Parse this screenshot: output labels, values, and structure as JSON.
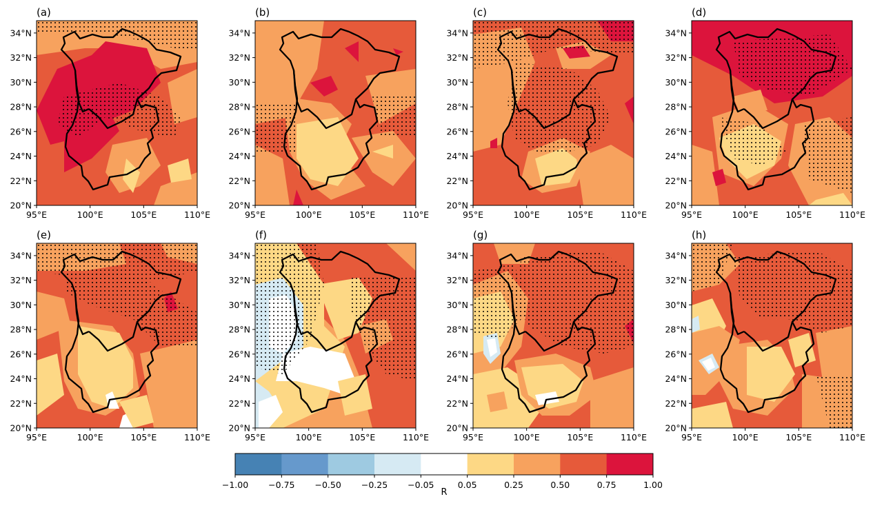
{
  "panels": [
    {
      "label": "(a)"
    },
    {
      "label": "(b)"
    },
    {
      "label": "(c)"
    },
    {
      "label": "(d)"
    },
    {
      "label": "(e)"
    },
    {
      "label": "(f)"
    },
    {
      "label": "(g)"
    },
    {
      "label": "(h)"
    }
  ],
  "axes": {
    "x_ticks": [
      "95°E",
      "100°E",
      "105°E",
      "110°E"
    ],
    "y_ticks": [
      "20°N",
      "22°N",
      "24°N",
      "26°N",
      "28°N",
      "30°N",
      "32°N",
      "34°N"
    ],
    "lon_range": [
      95,
      110
    ],
    "lat_range": [
      20,
      35
    ]
  },
  "colorbar": {
    "label": "R",
    "tick_labels": [
      "−1.00",
      "−0.75",
      "−0.50",
      "−0.25",
      "−0.05",
      "0.05",
      "0.25",
      "0.50",
      "0.75",
      "1.00"
    ],
    "colors": [
      "#4682b4",
      "#6699cc",
      "#9ecae1",
      "#d6eaf3",
      "#ffffff",
      "#fdd885",
      "#f7a25e",
      "#e65a3a",
      "#dc143c"
    ]
  },
  "colors": {
    "background": "#f7a25e",
    "patch_light": "#fdd885",
    "patch_orange": "#f7a25e",
    "patch_red": "#e65a3a",
    "patch_crimson": "#dc143c",
    "patch_lightblue": "#d6eaf3",
    "patch_white": "#ffffff",
    "boundary": "#000000"
  }
}
